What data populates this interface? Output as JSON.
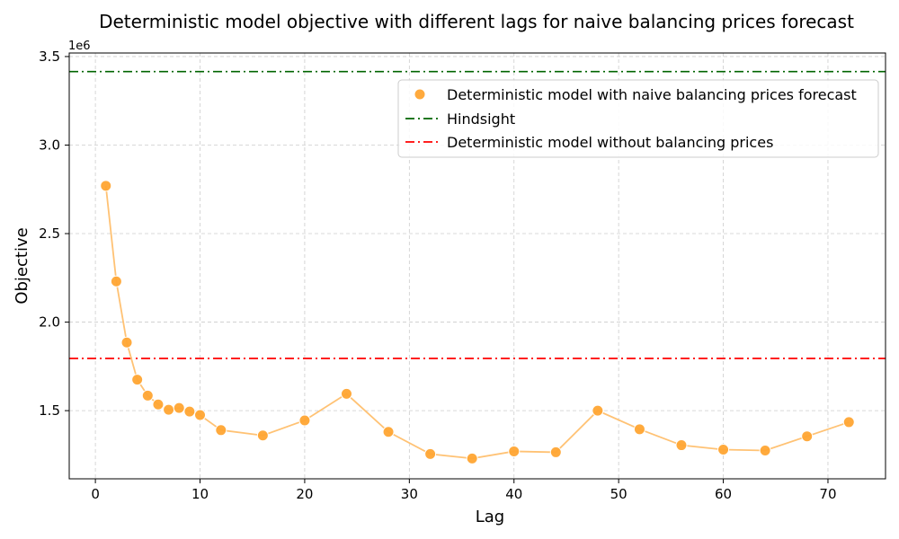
{
  "chart_data": {
    "type": "scatter",
    "title": "Deterministic model objective with different lags for naive balancing prices forecast",
    "xlabel": "Lag",
    "ylabel": "Objective",
    "y_offset_label": "1e6",
    "xlim": [
      -2.5,
      75.5
    ],
    "ylim": [
      1.115,
      3.52
    ],
    "x_ticks": [
      0,
      10,
      20,
      30,
      40,
      50,
      60,
      70
    ],
    "x_tick_labels": [
      "0",
      "10",
      "20",
      "30",
      "40",
      "50",
      "60",
      "70"
    ],
    "y_ticks": [
      1.5,
      2.0,
      2.5,
      3.0,
      3.5
    ],
    "y_tick_labels": [
      "1.5",
      "2.0",
      "2.5",
      "3.0",
      "3.5"
    ],
    "y_unit_multiplier": 1000000,
    "grid": true,
    "legend_position": "upper-right",
    "series": [
      {
        "name": "Deterministic model with naive balancing prices forecast",
        "kind": "scatter-with-line",
        "color": "#ffa533",
        "line_color": "#ffc274",
        "x": [
          1,
          2,
          3,
          4,
          5,
          6,
          7,
          8,
          9,
          10,
          12,
          16,
          20,
          24,
          28,
          32,
          36,
          40,
          44,
          48,
          52,
          56,
          60,
          64,
          68,
          72
        ],
        "y": [
          2.77,
          2.23,
          1.885,
          1.675,
          1.585,
          1.535,
          1.505,
          1.515,
          1.495,
          1.475,
          1.39,
          1.36,
          1.445,
          1.595,
          1.38,
          1.255,
          1.23,
          1.27,
          1.265,
          1.5,
          1.395,
          1.305,
          1.28,
          1.275,
          1.355,
          1.435
        ]
      },
      {
        "name": "Hindsight",
        "kind": "hline",
        "color": "#006400",
        "y": 3.415
      },
      {
        "name": "Deterministic model without balancing prices",
        "kind": "hline",
        "color": "#ff0000",
        "y": 1.795
      }
    ]
  }
}
